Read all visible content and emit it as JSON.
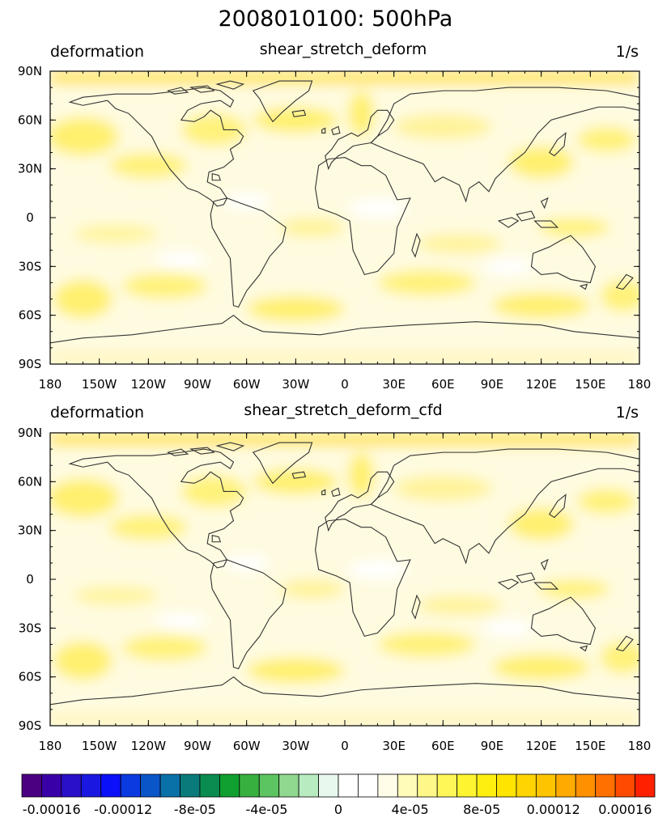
{
  "title": "2008010100: 500hPa",
  "panels": [
    {
      "left_label": "deformation",
      "center_label": "shear_stretch_deform",
      "right_label": "1/s",
      "lat_ticks": [
        "90N",
        "60N",
        "30N",
        "0",
        "30S",
        "60S",
        "90S"
      ],
      "lon_ticks": [
        "180",
        "150W",
        "120W",
        "90W",
        "60W",
        "30W",
        "0",
        "30E",
        "60E",
        "90E",
        "120E",
        "150E",
        "180"
      ]
    },
    {
      "left_label": "deformation",
      "center_label": "shear_stretch_deform_cfd",
      "right_label": "1/s",
      "lat_ticks": [
        "90N",
        "60N",
        "30N",
        "0",
        "30S",
        "60S",
        "90S"
      ],
      "lon_ticks": [
        "180",
        "150W",
        "120W",
        "90W",
        "60W",
        "30W",
        "0",
        "30E",
        "60E",
        "90E",
        "120E",
        "150E",
        "180"
      ]
    }
  ],
  "colorbar": {
    "labels": [
      "-0.00016",
      "-0.00012",
      "-8e-05",
      "-4e-05",
      "0",
      "4e-05",
      "8e-05",
      "0.00012",
      "0.00016"
    ],
    "colors": [
      "#4b0082",
      "#3a00a8",
      "#2a10c8",
      "#1a18e0",
      "#0a10f8",
      "#0a3ae0",
      "#0a55c8",
      "#0a70a8",
      "#0a7a7a",
      "#0a8c50",
      "#10a030",
      "#38b040",
      "#5cc460",
      "#90d890",
      "#b8ecc0",
      "#e8f8ee",
      "#ffffff",
      "#ffffff",
      "#fffde8",
      "#fffbb8",
      "#fff888",
      "#fff658",
      "#fff430",
      "#ffef10",
      "#ffe400",
      "#ffd400",
      "#ffc400",
      "#ffaa00",
      "#ff9000",
      "#ff7000",
      "#ff4a00",
      "#ff2000"
    ]
  }
}
